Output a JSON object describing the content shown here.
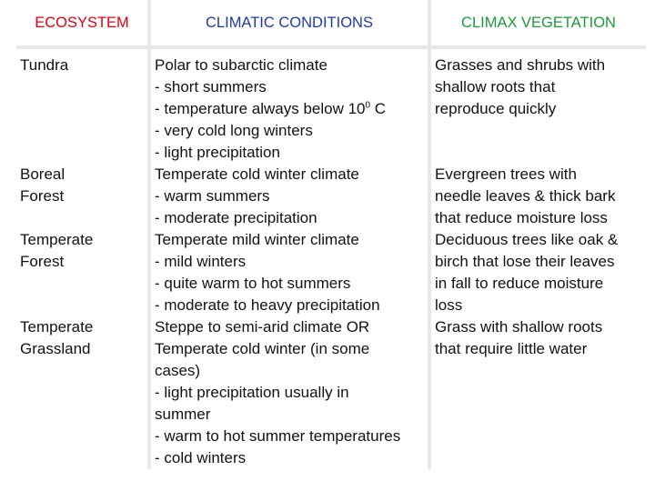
{
  "headers": {
    "ecosystem": "ECOSYSTEM",
    "climatic": "CLIMATIC CONDITIONS",
    "climax": "CLIMAX VEGETATION"
  },
  "colors": {
    "ecosystem_header": "#e0000f",
    "climatic_header": "#1f3aa8",
    "climax_header": "#1a9a3a"
  },
  "rows": [
    {
      "ecosystem": [
        "Tundra"
      ],
      "conditions": [
        "Polar to subarctic climate",
        "- short summers",
        "- temperature always below 10",
        "0",
        " C",
        "- very cold long winters",
        "- light precipitation"
      ],
      "vegetation": [
        "Grasses and shrubs with",
        "shallow roots that",
        "reproduce quickly"
      ]
    },
    {
      "ecosystem": [
        "Boreal",
        "Forest"
      ],
      "conditions": [
        "Temperate cold winter climate",
        "- warm summers",
        "- moderate precipitation"
      ],
      "vegetation": [
        "Evergreen trees with",
        "needle leaves & thick bark",
        "that reduce moisture loss"
      ]
    },
    {
      "ecosystem": [
        "Temperate",
        "Forest"
      ],
      "conditions": [
        "Temperate mild winter climate",
        "- mild winters",
        "- quite warm to hot summers",
        "- moderate to heavy precipitation"
      ],
      "vegetation": [
        "Deciduous trees like oak &",
        "birch that lose their leaves",
        "in fall to reduce moisture",
        "loss"
      ]
    },
    {
      "ecosystem": [
        "Temperate",
        "Grassland"
      ],
      "conditions": [
        "Steppe to semi-arid climate OR",
        "Temperate cold winter (in some",
        "cases)",
        "- light precipitation usually in",
        "summer",
        "- warm to hot summer temperatures",
        "- cold winters"
      ],
      "vegetation": [
        "Grass with shallow roots",
        "that require little water"
      ]
    }
  ]
}
